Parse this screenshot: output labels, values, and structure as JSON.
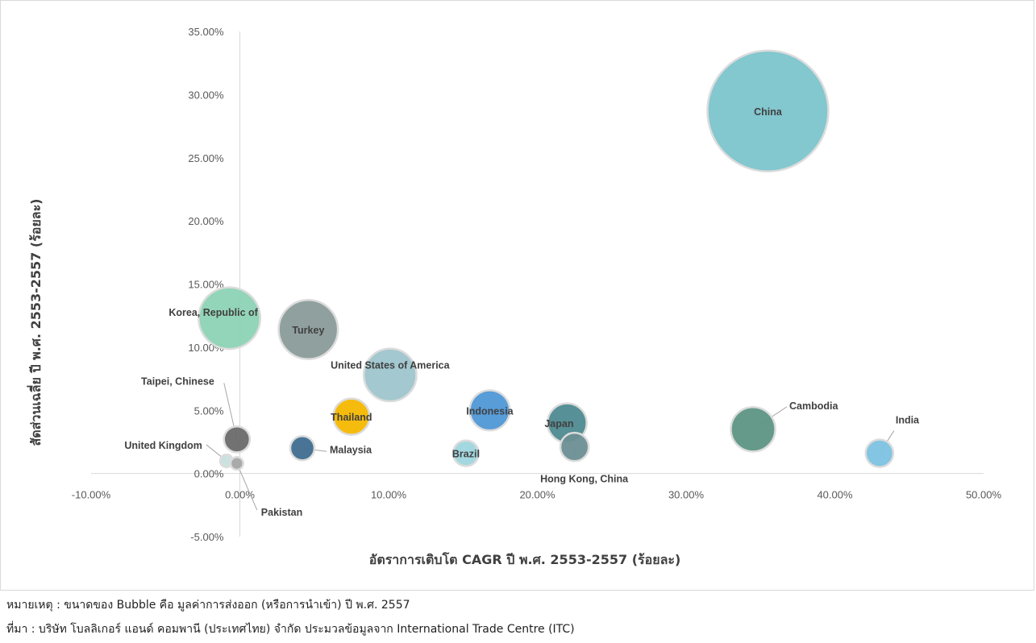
{
  "chart_data": {
    "type": "scatter",
    "subtype": "bubble",
    "xlabel": "อัตราการเติบโต CAGR ปี พ.ศ. 2553-2557 (ร้อยละ)",
    "ylabel": "สัดส่วนเฉลี่ย ปี พ.ศ. 2553-2557 (ร้อยละ)",
    "xlim": [
      -10,
      50
    ],
    "ylim": [
      -5,
      35
    ],
    "x_ticks": [
      "-10.00%",
      "0.00%",
      "10.00%",
      "20.00%",
      "30.00%",
      "40.00%",
      "50.00%"
    ],
    "y_ticks": [
      "-5.00%",
      "0.00%",
      "5.00%",
      "10.00%",
      "15.00%",
      "20.00%",
      "25.00%",
      "30.00%",
      "35.00%"
    ],
    "grid": false,
    "legend": "none",
    "bubble_size_meaning": "export (import) value in 2557",
    "points": [
      {
        "label": "China",
        "x": 35.5,
        "y": 28.7,
        "size": 100,
        "color": "#7cc4cc"
      },
      {
        "label": "Korea, Republic of",
        "x": -0.7,
        "y": 12.3,
        "size": 26,
        "color": "#8dd3b4"
      },
      {
        "label": "Turkey",
        "x": 4.6,
        "y": 11.4,
        "size": 24,
        "color": "#8a9b9a"
      },
      {
        "label": "United States of America",
        "x": 10.1,
        "y": 7.8,
        "size": 19,
        "color": "#9ec5cc"
      },
      {
        "label": "Thailand",
        "x": 7.5,
        "y": 4.5,
        "size": 9,
        "color": "#f5b800"
      },
      {
        "label": "Indonesia",
        "x": 16.8,
        "y": 5.0,
        "size": 11,
        "color": "#4f97d6"
      },
      {
        "label": "Japan",
        "x": 22.0,
        "y": 4.0,
        "size": 10.5,
        "color": "#4e8a90"
      },
      {
        "label": "Hong Kong, China",
        "x": 22.5,
        "y": 2.1,
        "size": 5.5,
        "color": "#6b8f94"
      },
      {
        "label": "Brazil",
        "x": 15.2,
        "y": 1.6,
        "size": 4.5,
        "color": "#9fd6de"
      },
      {
        "label": "Cambodia",
        "x": 34.5,
        "y": 3.5,
        "size": 13.5,
        "color": "#5d9585"
      },
      {
        "label": "India",
        "x": 43.0,
        "y": 1.6,
        "size": 5.2,
        "color": "#7cc2e0"
      },
      {
        "label": "Taipei, Chinese",
        "x": -0.2,
        "y": 2.7,
        "size": 4.6,
        "color": "#6a6a6a"
      },
      {
        "label": "Malaysia",
        "x": 4.2,
        "y": 2.0,
        "size": 4,
        "color": "#3f6d8f"
      },
      {
        "label": "United Kingdom",
        "x": -0.9,
        "y": 1.0,
        "size": 1.1,
        "color": "#c9e0de"
      },
      {
        "label": "Pakistan",
        "x": -0.2,
        "y": 0.8,
        "size": 1.1,
        "color": "#a5a5a5"
      }
    ]
  },
  "notes": {
    "note": "หมายเหตุ : ขนาดของ Bubble คือ มูลค่าการส่งออก (หรือการนำเข้า) ปี พ.ศ. 2557",
    "source": "ที่มา : บริษัท โบลลิเกอร์ แอนด์ คอมพานี (ประเทศไทย) จำกัด ประมวลข้อมูลจาก International Trade Centre (ITC)"
  }
}
